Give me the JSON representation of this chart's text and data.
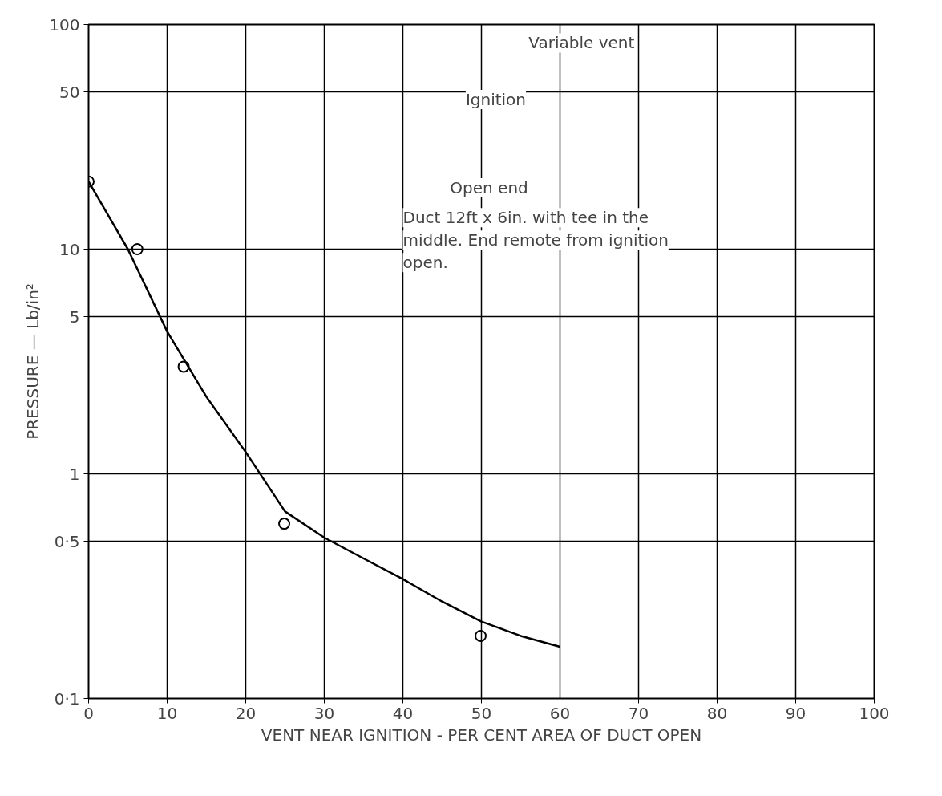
{
  "chart_data": {
    "type": "scatter",
    "xlabel": "VENT NEAR IGNITION - PER CENT AREA OF DUCT OPEN",
    "ylabel": "PRESSURE — Lb/in²",
    "log": "y",
    "xlim": [
      0,
      100
    ],
    "ylim": [
      0.1,
      100
    ],
    "xticks": [
      0,
      10,
      20,
      30,
      40,
      50,
      60,
      70,
      80,
      90,
      100
    ],
    "yticks": [
      {
        "value": 0.1,
        "label": "0·1"
      },
      {
        "value": 0.5,
        "label": "0·5"
      },
      1,
      5,
      10,
      50,
      100
    ],
    "grid": true,
    "series": [
      {
        "marker": "circle",
        "color": "#000000",
        "x": [
          0,
          6.2,
          12.1,
          24.9,
          49.9
        ],
        "values": [
          20,
          10,
          3,
          0.6,
          0.19
        ]
      },
      {
        "type": "line",
        "marker": "none",
        "line_style": "solid",
        "color": "#000000",
        "x": [
          0,
          5,
          10,
          15,
          20,
          25,
          30,
          35,
          40,
          45,
          50,
          55,
          60
        ],
        "values": [
          20,
          10,
          4.3,
          2.2,
          1.25,
          0.68,
          0.52,
          0.42,
          0.34,
          0.27,
          0.22,
          0.19,
          0.17
        ]
      }
    ],
    "annotations": [
      "Variable vent",
      "Ignition",
      "Open end",
      "Duct 12ft x 6in. with tee in the middle. End remote from ignition open."
    ]
  }
}
